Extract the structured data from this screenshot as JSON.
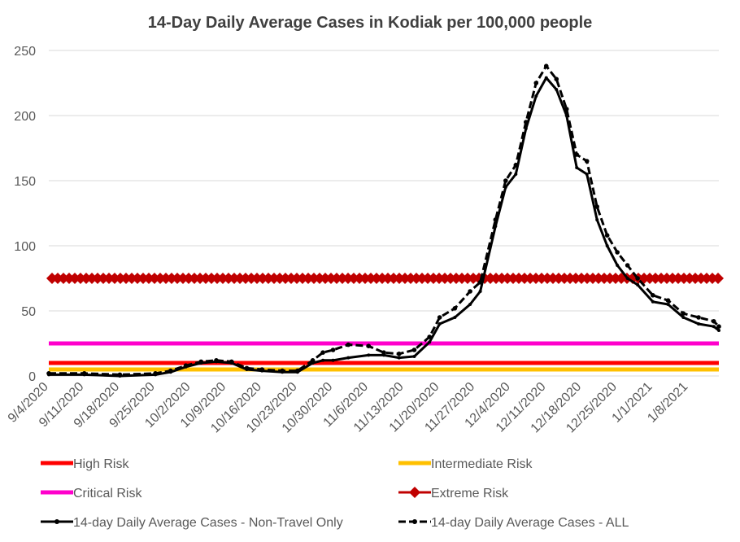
{
  "chart_data": {
    "type": "line",
    "title": "14-Day Daily Average Cases in Kodiak per 100,000 people",
    "xlabel": "",
    "ylabel": "",
    "ylim": [
      0,
      250
    ],
    "yticks": [
      0,
      50,
      100,
      150,
      200,
      250
    ],
    "x_start": "9/4/2020",
    "x_end": "1/14/2021",
    "x_tick_labels": [
      "9/4/2020",
      "9/11/2020",
      "9/18/2020",
      "9/25/2020",
      "10/2/2020",
      "10/9/2020",
      "10/16/2020",
      "10/23/2020",
      "10/30/2020",
      "11/6/2020",
      "11/13/2020",
      "11/20/2020",
      "11/27/2020",
      "12/4/2020",
      "12/11/2020",
      "12/18/2020",
      "12/25/2020",
      "1/1/2021",
      "1/8/2021"
    ],
    "grid": "horizontal",
    "legend_position": "bottom",
    "risk_lines": [
      {
        "name": "High Risk",
        "value": 10,
        "color": "#ff0000",
        "style": "solid"
      },
      {
        "name": "Intermediate Risk",
        "value": 5,
        "color": "#ffc000",
        "style": "solid"
      },
      {
        "name": "Critical Risk",
        "value": 25,
        "color": "#ff00cc",
        "style": "solid"
      },
      {
        "name": "Extreme Risk",
        "value": 75,
        "color": "#c00000",
        "style": "diamond"
      }
    ],
    "series": [
      {
        "name": "14-day Daily Average Cases - Non-Travel Only",
        "color": "#000000",
        "style": "solid",
        "x": [
          "9/4/2020",
          "9/11/2020",
          "9/18/2020",
          "9/25/2020",
          "9/28/2020",
          "10/1/2020",
          "10/4/2020",
          "10/7/2020",
          "10/10/2020",
          "10/13/2020",
          "10/16/2020",
          "10/20/2020",
          "10/23/2020",
          "10/26/2020",
          "10/28/2020",
          "10/30/2020",
          "11/2/2020",
          "11/6/2020",
          "11/9/2020",
          "11/12/2020",
          "11/15/2020",
          "11/18/2020",
          "11/20/2020",
          "11/23/2020",
          "11/26/2020",
          "11/28/2020",
          "12/1/2020",
          "12/3/2020",
          "12/5/2020",
          "12/7/2020",
          "12/9/2020",
          "12/11/2020",
          "12/13/2020",
          "12/15/2020",
          "12/17/2020",
          "12/19/2020",
          "12/21/2020",
          "12/23/2020",
          "12/25/2020",
          "12/27/2020",
          "12/29/2020",
          "1/1/2021",
          "1/4/2021",
          "1/7/2021",
          "1/10/2021",
          "1/13/2021",
          "1/14/2021"
        ],
        "values": [
          1,
          1,
          0,
          1,
          3,
          7,
          10,
          11,
          10,
          5,
          4,
          3,
          3,
          10,
          12,
          12,
          14,
          16,
          16,
          14,
          15,
          26,
          40,
          45,
          55,
          65,
          115,
          145,
          155,
          190,
          215,
          229,
          220,
          200,
          160,
          155,
          120,
          100,
          85,
          75,
          70,
          57,
          55,
          45,
          40,
          38,
          35
        ]
      },
      {
        "name": "14-day Daily Average Cases - ALL",
        "color": "#000000",
        "style": "dashed",
        "x": [
          "9/4/2020",
          "9/11/2020",
          "9/18/2020",
          "9/25/2020",
          "9/28/2020",
          "10/1/2020",
          "10/4/2020",
          "10/7/2020",
          "10/10/2020",
          "10/13/2020",
          "10/16/2020",
          "10/20/2020",
          "10/23/2020",
          "10/26/2020",
          "10/28/2020",
          "10/30/2020",
          "11/2/2020",
          "11/6/2020",
          "11/9/2020",
          "11/12/2020",
          "11/15/2020",
          "11/18/2020",
          "11/20/2020",
          "11/23/2020",
          "11/26/2020",
          "11/28/2020",
          "12/1/2020",
          "12/3/2020",
          "12/5/2020",
          "12/7/2020",
          "12/9/2020",
          "12/11/2020",
          "12/13/2020",
          "12/15/2020",
          "12/17/2020",
          "12/19/2020",
          "12/21/2020",
          "12/23/2020",
          "12/25/2020",
          "12/27/2020",
          "12/29/2020",
          "1/1/2021",
          "1/4/2021",
          "1/7/2021",
          "1/10/2021",
          "1/13/2021",
          "1/14/2021"
        ],
        "values": [
          2,
          2,
          1,
          2,
          4,
          8,
          11,
          12,
          11,
          6,
          5,
          4,
          4,
          12,
          18,
          20,
          24,
          23,
          18,
          17,
          20,
          30,
          45,
          52,
          65,
          72,
          120,
          150,
          162,
          195,
          225,
          238,
          228,
          205,
          170,
          165,
          130,
          108,
          95,
          85,
          75,
          62,
          58,
          48,
          45,
          42,
          38
        ]
      }
    ]
  }
}
